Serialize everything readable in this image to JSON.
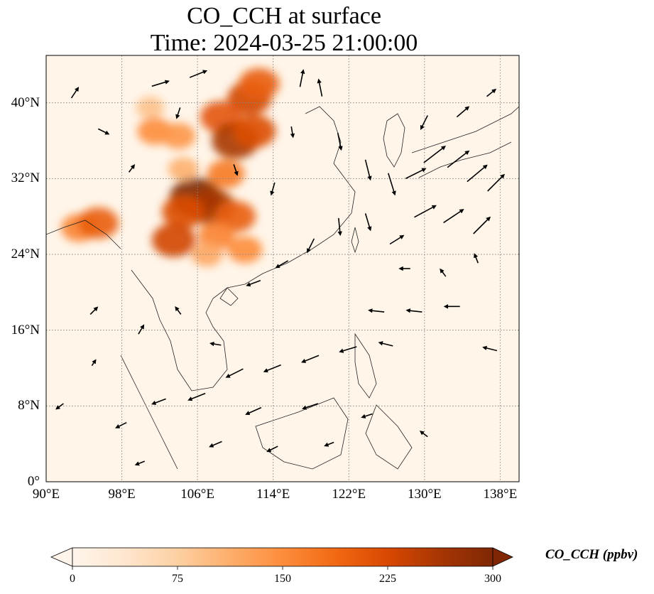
{
  "title_line1": "CO_CCH at surface",
  "title_line2": "Time: 2024-03-25 21:00:00",
  "map": {
    "extent": {
      "lon_min": 90,
      "lon_max": 140,
      "lat_min": 0,
      "lat_max": 45
    },
    "lat_ticks": [
      {
        "value": 40,
        "label": "40°N"
      },
      {
        "value": 32,
        "label": "32°N"
      },
      {
        "value": 24,
        "label": "24°N"
      },
      {
        "value": 16,
        "label": "16°N"
      },
      {
        "value": 8,
        "label": "8°N"
      },
      {
        "value": 0,
        "label": "0°"
      }
    ],
    "lon_ticks": [
      {
        "value": 90,
        "label": "90°E"
      },
      {
        "value": 98,
        "label": "98°E"
      },
      {
        "value": 106,
        "label": "106°E"
      },
      {
        "value": 114,
        "label": "114°E"
      },
      {
        "value": 122,
        "label": "122°E"
      },
      {
        "value": 130,
        "label": "130°E"
      },
      {
        "value": 138,
        "label": "138°E"
      }
    ],
    "gridlines": "dotted",
    "background_color": "#fff5e9",
    "plumes": [
      {
        "lon": 105.8,
        "lat": 30.0,
        "value": 300
      },
      {
        "lon": 107.5,
        "lat": 29.0,
        "value": 260
      },
      {
        "lon": 104.5,
        "lat": 28.5,
        "value": 220
      },
      {
        "lon": 110.0,
        "lat": 28.0,
        "value": 200
      },
      {
        "lon": 108.0,
        "lat": 26.0,
        "value": 160
      },
      {
        "lon": 103.5,
        "lat": 25.5,
        "value": 230
      },
      {
        "lon": 111.0,
        "lat": 24.5,
        "value": 150
      },
      {
        "lon": 107.0,
        "lat": 24.0,
        "value": 120
      },
      {
        "lon": 111.5,
        "lat": 40.5,
        "value": 230
      },
      {
        "lon": 112.5,
        "lat": 42.0,
        "value": 200
      },
      {
        "lon": 108.5,
        "lat": 38.5,
        "value": 210
      },
      {
        "lon": 110.0,
        "lat": 36.0,
        "value": 260
      },
      {
        "lon": 112.0,
        "lat": 37.0,
        "value": 220
      },
      {
        "lon": 101.5,
        "lat": 37.0,
        "value": 150
      },
      {
        "lon": 104.0,
        "lat": 36.5,
        "value": 140
      },
      {
        "lon": 93.5,
        "lat": 26.8,
        "value": 160
      },
      {
        "lon": 95.5,
        "lat": 27.3,
        "value": 200
      },
      {
        "lon": 109.0,
        "lat": 32.5,
        "value": 170
      },
      {
        "lon": 104.5,
        "lat": 33.0,
        "value": 110
      },
      {
        "lon": 101.0,
        "lat": 39.5,
        "value": 90
      }
    ],
    "wind_vectors": [
      {
        "lon": 102.0,
        "lat": 42.0,
        "u": 1.0,
        "v": 0.3
      },
      {
        "lon": 106.0,
        "lat": 43.0,
        "u": 1.0,
        "v": 0.4
      },
      {
        "lon": 117.0,
        "lat": 42.5,
        "u": 0.2,
        "v": 1.0
      },
      {
        "lon": 119.0,
        "lat": 41.5,
        "u": -0.2,
        "v": 1.0
      },
      {
        "lon": 121.0,
        "lat": 36.0,
        "u": 0.2,
        "v": -1.0
      },
      {
        "lon": 124.0,
        "lat": 33.0,
        "u": 0.3,
        "v": -1.2
      },
      {
        "lon": 126.5,
        "lat": 31.5,
        "u": 0.4,
        "v": -1.3
      },
      {
        "lon": 129.0,
        "lat": 32.5,
        "u": 1.2,
        "v": 0.6
      },
      {
        "lon": 131.0,
        "lat": 34.5,
        "u": 1.3,
        "v": 1.0
      },
      {
        "lon": 133.5,
        "lat": 34.0,
        "u": 1.3,
        "v": 1.0
      },
      {
        "lon": 135.5,
        "lat": 32.5,
        "u": 1.2,
        "v": 1.0
      },
      {
        "lon": 137.5,
        "lat": 31.5,
        "u": 1.0,
        "v": 1.0
      },
      {
        "lon": 130.0,
        "lat": 28.5,
        "u": 1.3,
        "v": 0.7
      },
      {
        "lon": 133.0,
        "lat": 28.0,
        "u": 1.2,
        "v": 0.8
      },
      {
        "lon": 136.0,
        "lat": 27.0,
        "u": 1.0,
        "v": 1.0
      },
      {
        "lon": 127.0,
        "lat": 25.5,
        "u": 0.8,
        "v": 0.5
      },
      {
        "lon": 124.0,
        "lat": 27.5,
        "u": 0.3,
        "v": -1.0
      },
      {
        "lon": 121.0,
        "lat": 27.0,
        "u": 0.1,
        "v": -1.0
      },
      {
        "lon": 118.0,
        "lat": 25.0,
        "u": -0.4,
        "v": -0.8
      },
      {
        "lon": 115.0,
        "lat": 23.0,
        "u": -0.7,
        "v": -0.4
      },
      {
        "lon": 112.0,
        "lat": 21.0,
        "u": -0.8,
        "v": -0.3
      },
      {
        "lon": 125.0,
        "lat": 18.0,
        "u": -0.9,
        "v": 0.1
      },
      {
        "lon": 129.0,
        "lat": 18.0,
        "u": -0.9,
        "v": 0.1
      },
      {
        "lon": 133.0,
        "lat": 18.5,
        "u": -0.9,
        "v": 0.0
      },
      {
        "lon": 137.0,
        "lat": 14.0,
        "u": -0.8,
        "v": 0.2
      },
      {
        "lon": 126.0,
        "lat": 14.5,
        "u": -0.8,
        "v": 0.2
      },
      {
        "lon": 122.0,
        "lat": 14.0,
        "u": -1.0,
        "v": -0.3
      },
      {
        "lon": 118.0,
        "lat": 13.0,
        "u": -1.0,
        "v": -0.4
      },
      {
        "lon": 114.0,
        "lat": 12.0,
        "u": -1.0,
        "v": -0.4
      },
      {
        "lon": 110.0,
        "lat": 11.5,
        "u": -1.0,
        "v": -0.5
      },
      {
        "lon": 106.0,
        "lat": 9.0,
        "u": -1.0,
        "v": -0.4
      },
      {
        "lon": 102.0,
        "lat": 8.5,
        "u": -0.8,
        "v": -0.3
      },
      {
        "lon": 98.0,
        "lat": 6.0,
        "u": -0.6,
        "v": -0.3
      },
      {
        "lon": 112.0,
        "lat": 7.5,
        "u": -0.9,
        "v": -0.4
      },
      {
        "lon": 118.0,
        "lat": 8.0,
        "u": -0.9,
        "v": -0.3
      },
      {
        "lon": 124.0,
        "lat": 7.0,
        "u": -0.6,
        "v": -0.2
      },
      {
        "lon": 108.0,
        "lat": 4.0,
        "u": -0.7,
        "v": -0.3
      },
      {
        "lon": 114.0,
        "lat": 3.5,
        "u": -0.6,
        "v": -0.3
      },
      {
        "lon": 120.0,
        "lat": 4.0,
        "u": -0.5,
        "v": -0.2
      },
      {
        "lon": 100.0,
        "lat": 2.0,
        "u": -0.5,
        "v": -0.2
      },
      {
        "lon": 95.0,
        "lat": 18.0,
        "u": 0.4,
        "v": 0.4
      },
      {
        "lon": 100.0,
        "lat": 16.0,
        "u": 0.3,
        "v": 0.5
      },
      {
        "lon": 104.0,
        "lat": 18.0,
        "u": -0.3,
        "v": 0.4
      },
      {
        "lon": 108.0,
        "lat": 14.5,
        "u": -0.6,
        "v": 0.1
      },
      {
        "lon": 96.0,
        "lat": 37.0,
        "u": 0.6,
        "v": -0.3
      },
      {
        "lon": 93.0,
        "lat": 41.0,
        "u": 0.4,
        "v": 0.6
      },
      {
        "lon": 99.0,
        "lat": 33.0,
        "u": 0.3,
        "v": 0.4
      },
      {
        "lon": 104.0,
        "lat": 39.0,
        "u": -0.2,
        "v": -0.6
      },
      {
        "lon": 110.0,
        "lat": 33.0,
        "u": 0.2,
        "v": -0.6
      },
      {
        "lon": 114.0,
        "lat": 31.0,
        "u": -0.2,
        "v": -0.7
      },
      {
        "lon": 116.0,
        "lat": 37.0,
        "u": 0.1,
        "v": -0.6
      },
      {
        "lon": 130.0,
        "lat": 38.0,
        "u": -0.4,
        "v": -0.8
      },
      {
        "lon": 134.0,
        "lat": 39.0,
        "u": 0.7,
        "v": 0.6
      },
      {
        "lon": 137.0,
        "lat": 41.0,
        "u": 0.5,
        "v": 0.4
      },
      {
        "lon": 132.0,
        "lat": 22.0,
        "u": -0.3,
        "v": 0.4
      },
      {
        "lon": 128.0,
        "lat": 22.5,
        "u": -0.6,
        "v": 0.0
      },
      {
        "lon": 135.5,
        "lat": 23.5,
        "u": -0.2,
        "v": 0.5
      },
      {
        "lon": 95.0,
        "lat": 12.5,
        "u": 0.2,
        "v": 0.3
      },
      {
        "lon": 91.5,
        "lat": 8.0,
        "u": -0.4,
        "v": -0.3
      },
      {
        "lon": 130.0,
        "lat": 5.0,
        "u": -0.4,
        "v": 0.3
      }
    ]
  },
  "colorbar": {
    "label": "CO_CCH (ppbv)",
    "min": 0,
    "max": 300,
    "ticks": [
      {
        "value": 0,
        "label": "0"
      },
      {
        "value": 75,
        "label": "75"
      },
      {
        "value": 150,
        "label": "150"
      },
      {
        "value": 225,
        "label": "225"
      },
      {
        "value": 300,
        "label": "300"
      }
    ],
    "colormap": [
      "#fff5eb",
      "#fee6ce",
      "#fdd0a2",
      "#fdae6b",
      "#fd8d3c",
      "#f16913",
      "#d94801",
      "#a63603",
      "#7f2704"
    ],
    "extend": "both"
  }
}
